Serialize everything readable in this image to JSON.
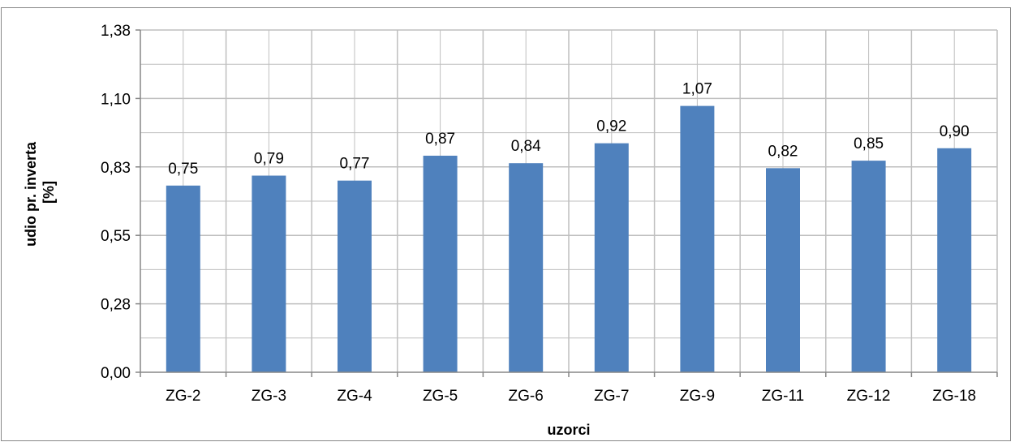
{
  "chart_data": {
    "type": "bar",
    "title": "",
    "xlabel": "uzorci",
    "ylabel_lines": [
      "udio pr. inverta",
      "[%]"
    ],
    "categories": [
      "ZG-2",
      "ZG-3",
      "ZG-4",
      "ZG-5",
      "ZG-6",
      "ZG-7",
      "ZG-9",
      "ZG-11",
      "ZG-12",
      "ZG-18"
    ],
    "values": [
      0.75,
      0.79,
      0.77,
      0.87,
      0.84,
      0.92,
      1.07,
      0.82,
      0.85,
      0.9
    ],
    "value_labels": [
      "0,75",
      "0,79",
      "0,77",
      "0,87",
      "0,84",
      "0,92",
      "1,07",
      "0,82",
      "0,85",
      "0,90"
    ],
    "yticks": [
      0.0,
      0.275,
      0.55,
      0.825,
      1.1,
      1.375
    ],
    "ytick_labels": [
      "0,00",
      "0,28",
      "0,55",
      "0,83",
      "1,10",
      "1,38"
    ],
    "ylim": [
      0,
      1.375
    ],
    "grid": true,
    "legend": "none",
    "colors": {
      "bar": "#4F81BD",
      "grid": "#BFBFBF",
      "axis": "#878787",
      "frame": "#878787"
    }
  }
}
